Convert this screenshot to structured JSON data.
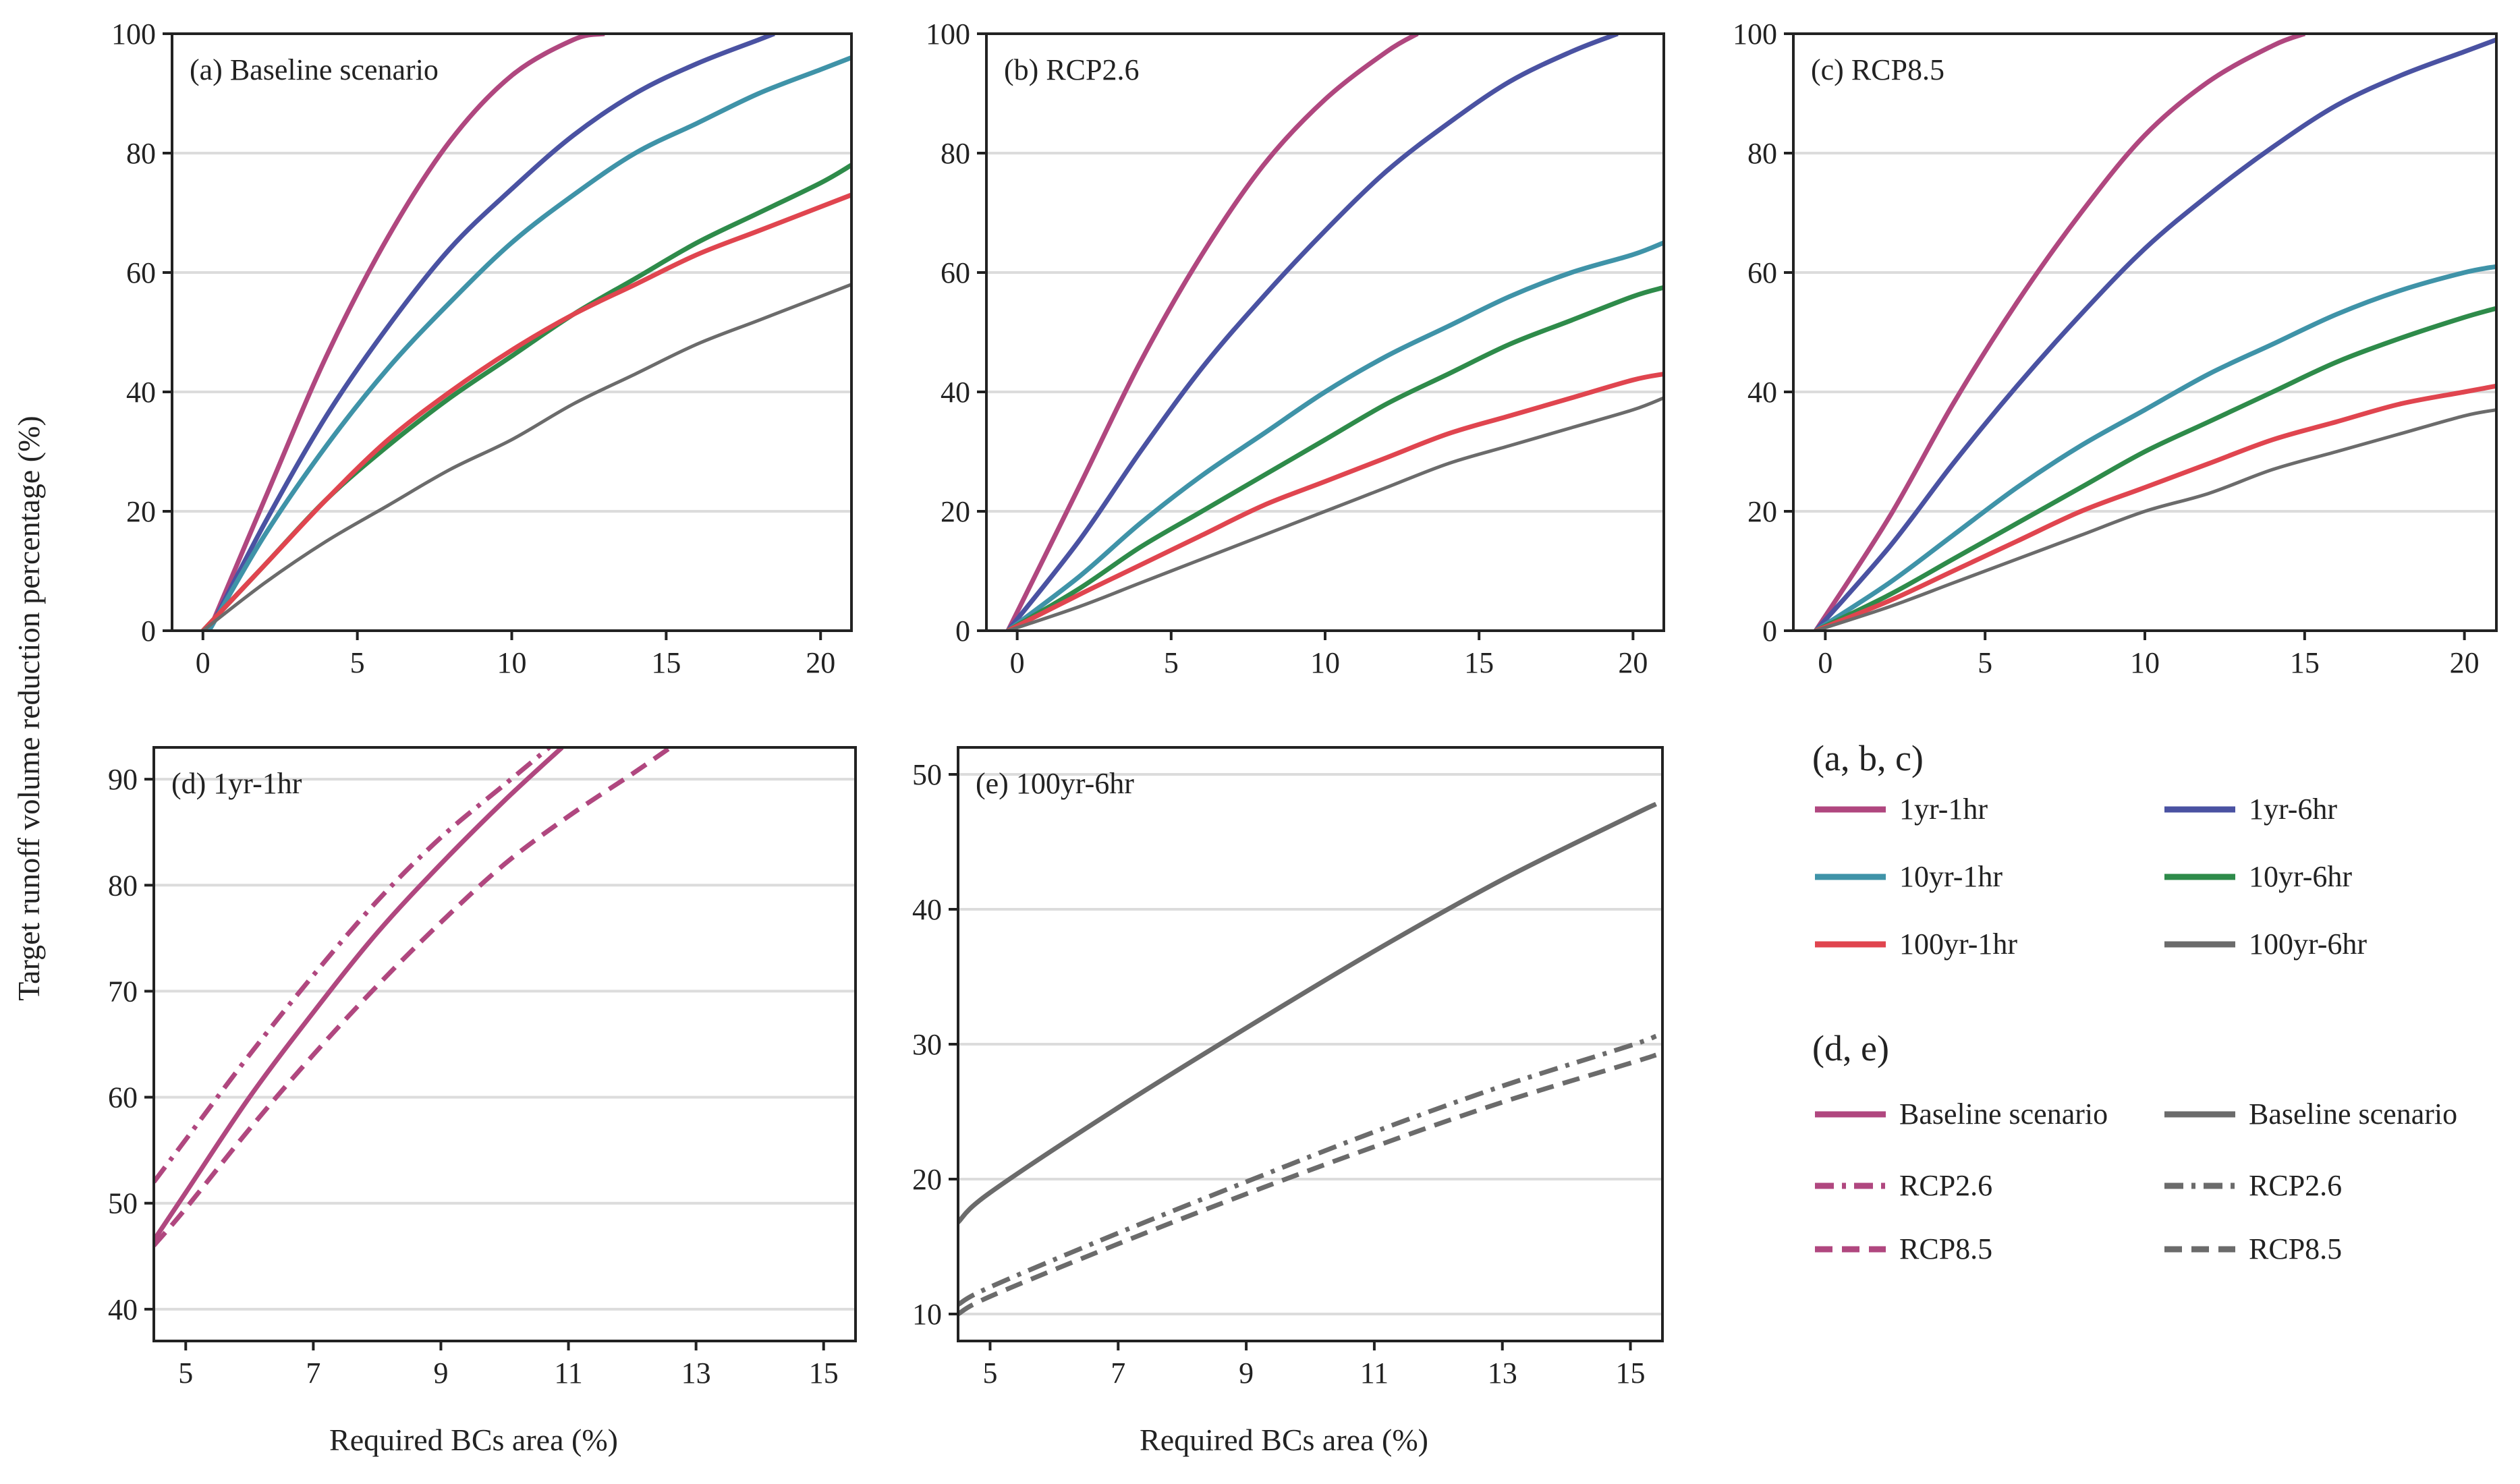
{
  "figure": {
    "ylabel": "Target runoff volume reduction percentage (%)",
    "xlabel": "Required BCs area (%)"
  },
  "colors": {
    "1yr-1hr": "#b0477f",
    "1yr-6hr": "#4a52a2",
    "10yr-1hr": "#3f93a8",
    "10yr-6hr": "#2e8b4a",
    "100yr-1hr": "#e0454f",
    "100yr-6hr": "#6b6b6b",
    "grid": "#dcdcdc",
    "axis": "#222222"
  },
  "legend": {
    "abc_title": "(a, b, c)",
    "abc_items": [
      "1yr-1hr",
      "1yr-6hr",
      "10yr-1hr",
      "10yr-6hr",
      "100yr-1hr",
      "100yr-6hr"
    ],
    "de_title": "(d, e)",
    "de_items": [
      {
        "label": "Baseline scenario",
        "color_key": "1yr-1hr",
        "dash": "solid"
      },
      {
        "label": "Baseline scenario",
        "color_key": "100yr-6hr",
        "dash": "solid"
      },
      {
        "label": "RCP2.6",
        "color_key": "1yr-1hr",
        "dash": "dashdot"
      },
      {
        "label": "RCP2.6",
        "color_key": "100yr-6hr",
        "dash": "dashdot"
      },
      {
        "label": "RCP8.5",
        "color_key": "1yr-1hr",
        "dash": "dashed"
      },
      {
        "label": "RCP8.5",
        "color_key": "100yr-6hr",
        "dash": "dashed"
      }
    ]
  },
  "chart_data": [
    {
      "id": "a",
      "type": "line",
      "title": "(a) Baseline scenario",
      "xlim": [
        -1,
        21
      ],
      "ylim": [
        0,
        100
      ],
      "xticks": [
        0,
        5,
        10,
        15,
        20
      ],
      "yticks": [
        0,
        20,
        40,
        60,
        80,
        100
      ],
      "series": [
        {
          "name": "1yr-1hr",
          "x": [
            0.2,
            2,
            4,
            6,
            8,
            10,
            12,
            13
          ],
          "y": [
            0,
            22,
            46,
            66,
            82,
            93,
            99,
            100
          ]
        },
        {
          "name": "1yr-6hr",
          "x": [
            0.2,
            2,
            4,
            6,
            8,
            10,
            12,
            14,
            16,
            18,
            18.5
          ],
          "y": [
            0,
            18,
            36,
            51,
            64,
            74,
            83,
            90,
            95,
            99,
            100
          ]
        },
        {
          "name": "10yr-1hr",
          "x": [
            0.2,
            2,
            4,
            6,
            8,
            10,
            12,
            14,
            16,
            18,
            20,
            21
          ],
          "y": [
            0,
            16,
            31,
            44,
            55,
            65,
            73,
            80,
            85,
            90,
            94,
            96
          ]
        },
        {
          "name": "10yr-6hr",
          "x": [
            0,
            2,
            4,
            6,
            8,
            10,
            12,
            14,
            16,
            18,
            20,
            21
          ],
          "y": [
            0,
            11,
            22,
            31,
            39,
            46,
            53,
            59,
            65,
            70,
            75,
            78
          ]
        },
        {
          "name": "100yr-1hr",
          "x": [
            0,
            2,
            4,
            6,
            8,
            10,
            12,
            14,
            16,
            18,
            20,
            21
          ],
          "y": [
            0,
            11,
            22,
            32,
            40,
            47,
            53,
            58,
            63,
            67,
            71,
            73
          ]
        },
        {
          "name": "100yr-6hr",
          "x": [
            0,
            2,
            4,
            6,
            8,
            10,
            12,
            14,
            16,
            18,
            20,
            21
          ],
          "y": [
            0,
            8,
            15,
            21,
            27,
            32,
            38,
            43,
            48,
            52,
            56,
            58
          ]
        }
      ]
    },
    {
      "id": "b",
      "type": "line",
      "title": "(b) RCP2.6",
      "xlim": [
        -1,
        21
      ],
      "ylim": [
        0,
        100
      ],
      "xticks": [
        0,
        5,
        10,
        15,
        20
      ],
      "yticks": [
        0,
        20,
        40,
        60,
        80,
        100
      ],
      "series": [
        {
          "name": "1yr-1hr",
          "x": [
            -0.3,
            2,
            4,
            6,
            8,
            10,
            12,
            13
          ],
          "y": [
            0,
            24,
            45,
            63,
            78,
            89,
            97,
            100
          ]
        },
        {
          "name": "1yr-6hr",
          "x": [
            -0.3,
            2,
            4,
            6,
            8,
            10,
            12,
            14,
            16,
            18,
            19.5
          ],
          "y": [
            0,
            15,
            30,
            44,
            56,
            67,
            77,
            85,
            92,
            97,
            100
          ]
        },
        {
          "name": "10yr-1hr",
          "x": [
            -0.3,
            2,
            4,
            6,
            8,
            10,
            12,
            14,
            16,
            18,
            20,
            21
          ],
          "y": [
            0,
            9,
            18,
            26,
            33,
            40,
            46,
            51,
            56,
            60,
            63,
            65
          ]
        },
        {
          "name": "10yr-6hr",
          "x": [
            -0.3,
            2,
            4,
            6,
            8,
            10,
            12,
            14,
            16,
            18,
            20,
            21
          ],
          "y": [
            0,
            7,
            14,
            20,
            26,
            32,
            38,
            43,
            48,
            52,
            56,
            57.5
          ]
        },
        {
          "name": "100yr-1hr",
          "x": [
            -0.3,
            2,
            4,
            6,
            8,
            10,
            12,
            14,
            16,
            18,
            20,
            21
          ],
          "y": [
            0,
            6,
            11,
            16,
            21,
            25,
            29,
            33,
            36,
            39,
            42,
            43
          ]
        },
        {
          "name": "100yr-6hr",
          "x": [
            -0.3,
            2,
            4,
            6,
            8,
            10,
            12,
            14,
            16,
            18,
            20,
            21
          ],
          "y": [
            0,
            4,
            8,
            12,
            16,
            20,
            24,
            28,
            31,
            34,
            37,
            39
          ]
        }
      ]
    },
    {
      "id": "c",
      "type": "line",
      "title": "(c) RCP8.5",
      "xlim": [
        -1,
        21
      ],
      "ylim": [
        0,
        100
      ],
      "xticks": [
        0,
        5,
        10,
        15,
        20
      ],
      "yticks": [
        0,
        20,
        40,
        60,
        80,
        100
      ],
      "series": [
        {
          "name": "1yr-1hr",
          "x": [
            -0.3,
            2,
            4,
            6,
            8,
            10,
            12,
            14,
            15
          ],
          "y": [
            0,
            19,
            38,
            55,
            70,
            83,
            92,
            98,
            100
          ]
        },
        {
          "name": "1yr-6hr",
          "x": [
            -0.3,
            2,
            4,
            6,
            8,
            10,
            12,
            14,
            16,
            18,
            20,
            21
          ],
          "y": [
            0,
            14,
            28,
            41,
            53,
            64,
            73,
            81,
            88,
            93,
            97,
            99
          ]
        },
        {
          "name": "10yr-1hr",
          "x": [
            -0.3,
            2,
            4,
            6,
            8,
            10,
            12,
            14,
            16,
            18,
            20,
            21
          ],
          "y": [
            0,
            8,
            16,
            24,
            31,
            37,
            43,
            48,
            53,
            57,
            60,
            61
          ]
        },
        {
          "name": "10yr-6hr",
          "x": [
            -0.3,
            2,
            4,
            6,
            8,
            10,
            12,
            14,
            16,
            18,
            20,
            21
          ],
          "y": [
            0,
            6,
            12,
            18,
            24,
            30,
            35,
            40,
            45,
            49,
            52.5,
            54
          ]
        },
        {
          "name": "100yr-1hr",
          "x": [
            -0.3,
            2,
            4,
            6,
            8,
            10,
            12,
            14,
            16,
            18,
            20,
            21
          ],
          "y": [
            0,
            5,
            10,
            15,
            20,
            24,
            28,
            32,
            35,
            38,
            40,
            41
          ]
        },
        {
          "name": "100yr-6hr",
          "x": [
            -0.3,
            2,
            4,
            6,
            8,
            10,
            12,
            14,
            16,
            18,
            20,
            21
          ],
          "y": [
            0,
            4,
            8,
            12,
            16,
            20,
            23,
            27,
            30,
            33,
            36,
            37
          ]
        }
      ]
    },
    {
      "id": "d",
      "type": "line",
      "title": "(d) 1yr-1hr",
      "xlim": [
        4.5,
        15.5
      ],
      "ylim": [
        37,
        93
      ],
      "xticks": [
        5,
        7,
        9,
        11,
        13,
        15
      ],
      "yticks": [
        40,
        50,
        60,
        70,
        80,
        90
      ],
      "series": [
        {
          "name": "Baseline scenario",
          "color_key": "1yr-1hr",
          "dash": "solid",
          "x": [
            4.5,
            5,
            6,
            7,
            8,
            9,
            10,
            10.9
          ],
          "y": [
            46.5,
            51,
            60,
            68,
            75.5,
            82,
            88,
            93
          ]
        },
        {
          "name": "RCP2.6",
          "color_key": "1yr-1hr",
          "dash": "dashdot",
          "x": [
            4.5,
            5,
            6,
            7,
            8,
            9,
            10,
            10.7
          ],
          "y": [
            52,
            56,
            64,
            71.5,
            78.5,
            84.5,
            89.5,
            93
          ]
        },
        {
          "name": "RCP8.5",
          "color_key": "1yr-1hr",
          "dash": "dashed",
          "x": [
            4.5,
            5,
            6,
            7,
            8,
            9,
            10,
            11,
            12,
            12.6
          ],
          "y": [
            46,
            49.5,
            57,
            64,
            70.5,
            76.5,
            82,
            86.5,
            90.5,
            93
          ]
        }
      ]
    },
    {
      "id": "e",
      "type": "line",
      "title": "(e) 100yr-6hr",
      "xlim": [
        4.5,
        15.5
      ],
      "ylim": [
        8,
        52
      ],
      "xticks": [
        5,
        7,
        9,
        11,
        13,
        15
      ],
      "yticks": [
        10,
        20,
        30,
        40,
        50
      ],
      "series": [
        {
          "name": "Baseline scenario",
          "color_key": "100yr-6hr",
          "dash": "solid",
          "x": [
            4.5,
            5,
            7,
            9,
            11,
            13,
            15,
            15.4
          ],
          "y": [
            16.8,
            19,
            25.3,
            31.2,
            36.9,
            42.2,
            46.9,
            47.8
          ]
        },
        {
          "name": "RCP2.6",
          "color_key": "100yr-6hr",
          "dash": "dashdot",
          "x": [
            4.5,
            5,
            7,
            9,
            11,
            13,
            15,
            15.4
          ],
          "y": [
            10.7,
            12,
            16,
            19.8,
            23.5,
            26.9,
            29.9,
            30.6
          ]
        },
        {
          "name": "RCP8.5",
          "color_key": "100yr-6hr",
          "dash": "dashed",
          "x": [
            4.5,
            5,
            7,
            9,
            11,
            13,
            15,
            15.4
          ],
          "y": [
            10,
            11.3,
            15.2,
            18.9,
            22.4,
            25.7,
            28.6,
            29.2
          ]
        }
      ]
    }
  ]
}
